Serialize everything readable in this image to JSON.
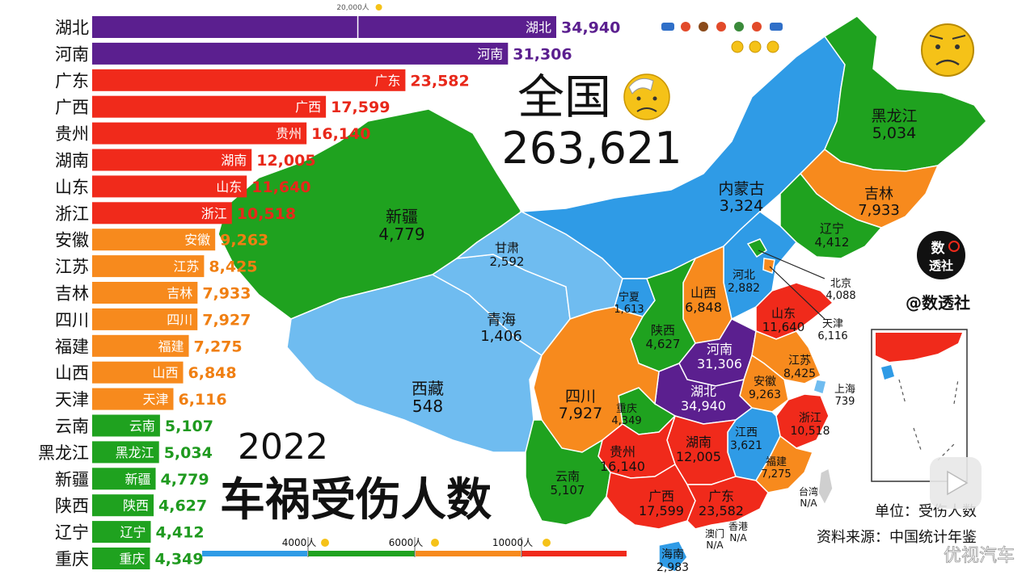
{
  "chart_data": {
    "type": "bar",
    "title": "车祸受伤人数",
    "year": "2022",
    "national_label": "全国",
    "national_total": "263,621",
    "unit_text": "单位：受伤人数",
    "source_text": "资料来源：中国统计年鉴",
    "brand_text": "@数透社",
    "brand_logo_text": [
      "数",
      "透社"
    ],
    "watermark_text": "优视汽车",
    "top_axis_tick": "20,000人",
    "legend_thresholds": [
      "4000人",
      "6000人",
      "10000人"
    ],
    "colors": {
      "purple": "#5b1f8f",
      "red": "#f02a1b",
      "orange": "#f78a1d",
      "green": "#1fa21f",
      "blue": "#2f9be6",
      "lightblue": "#6fbcf0"
    },
    "categories": [
      "湖北",
      "河南",
      "广东",
      "广西",
      "贵州",
      "湖南",
      "山东",
      "浙江",
      "安徽",
      "江苏",
      "吉林",
      "四川",
      "福建",
      "山西",
      "天津",
      "云南",
      "黑龙江",
      "新疆",
      "陕西",
      "辽宁",
      "重庆"
    ],
    "values": [
      34940,
      31306,
      23582,
      17599,
      16140,
      12005,
      11640,
      10518,
      9263,
      8425,
      7933,
      7927,
      7275,
      6848,
      6116,
      5107,
      5034,
      4779,
      4627,
      4412,
      4349
    ],
    "value_labels": [
      "34,940",
      "31,306",
      "23,582",
      "17,599",
      "16,140",
      "12,005",
      "11,640",
      "10,518",
      "9,263",
      "8,425",
      "7,933",
      "7,927",
      "7,275",
      "6,848",
      "6,116",
      "5,107",
      "5,034",
      "4,779",
      "4,627",
      "4,412",
      "4,349"
    ],
    "bar_colors": [
      "purple",
      "purple",
      "red",
      "red",
      "red",
      "red",
      "red",
      "red",
      "orange",
      "orange",
      "orange",
      "orange",
      "orange",
      "orange",
      "orange",
      "green",
      "green",
      "green",
      "green",
      "green",
      "green"
    ],
    "map_labels": [
      {
        "name": "新疆",
        "value": "4,779"
      },
      {
        "name": "西藏",
        "value": "548"
      },
      {
        "name": "青海",
        "value": "1,406"
      },
      {
        "name": "甘肃",
        "value": "2,592"
      },
      {
        "name": "内蒙古",
        "value": "3,324"
      },
      {
        "name": "黑龙江",
        "value": "5,034"
      },
      {
        "name": "吉林",
        "value": "7,933"
      },
      {
        "name": "辽宁",
        "value": "4,412"
      },
      {
        "name": "北京",
        "value": "4,088"
      },
      {
        "name": "天津",
        "value": "6,116"
      },
      {
        "name": "河北",
        "value": "2,882"
      },
      {
        "name": "山西",
        "value": "6,848"
      },
      {
        "name": "宁夏",
        "value": "1,613"
      },
      {
        "name": "陕西",
        "value": "4,627"
      },
      {
        "name": "山东",
        "value": "11,640"
      },
      {
        "name": "河南",
        "value": "31,306"
      },
      {
        "name": "江苏",
        "value": "8,425"
      },
      {
        "name": "安徽",
        "value": "9,263"
      },
      {
        "name": "上海",
        "value": "739"
      },
      {
        "name": "湖北",
        "value": "34,940"
      },
      {
        "name": "四川",
        "value": "7,927"
      },
      {
        "name": "重庆",
        "value": "4,349"
      },
      {
        "name": "浙江",
        "value": "10,518"
      },
      {
        "name": "江西",
        "value": "3,621"
      },
      {
        "name": "湖南",
        "value": "12,005"
      },
      {
        "name": "贵州",
        "value": "16,140"
      },
      {
        "name": "云南",
        "value": "5,107"
      },
      {
        "name": "福建",
        "value": "7,275"
      },
      {
        "name": "广西",
        "value": "17,599"
      },
      {
        "name": "广东",
        "value": "23,582"
      },
      {
        "name": "台湾",
        "value": "N/A"
      },
      {
        "name": "澳门",
        "value": "N/A"
      },
      {
        "name": "香港",
        "value": "N/A"
      },
      {
        "name": "海南",
        "value": "2,983"
      }
    ]
  }
}
